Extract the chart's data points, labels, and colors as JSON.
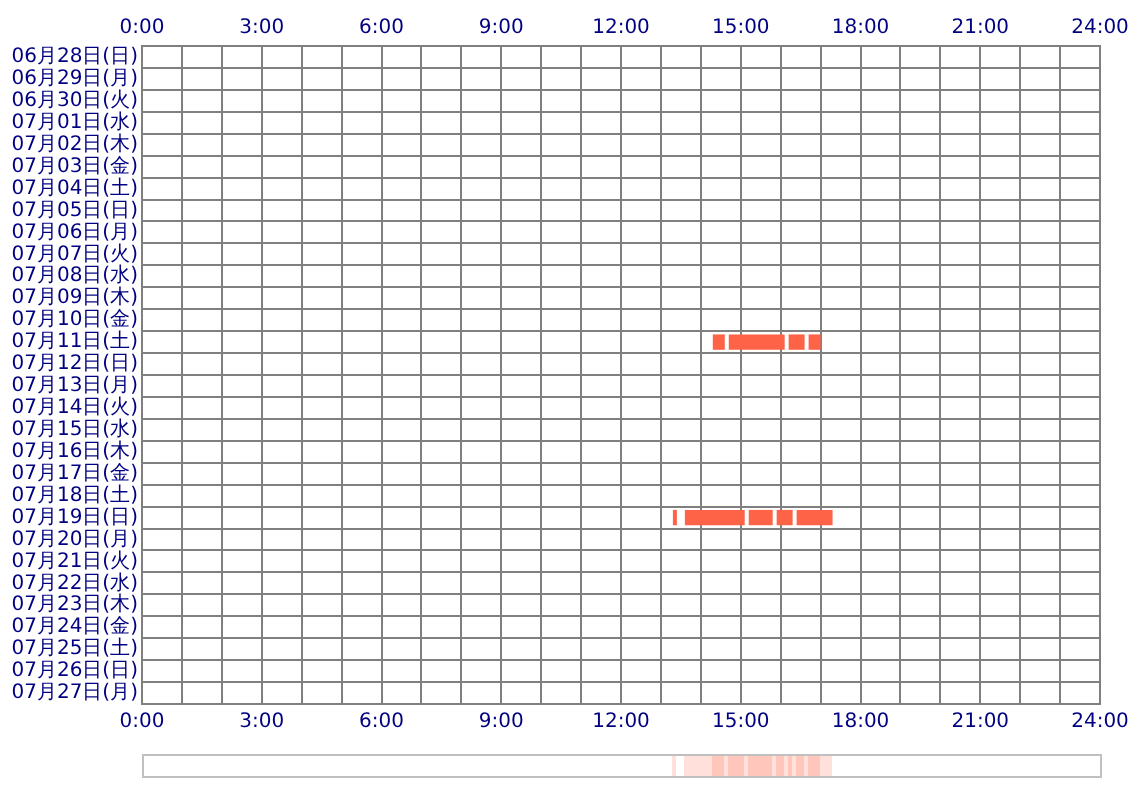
{
  "chart_data": {
    "type": "bar",
    "orientation": "horizontal",
    "legend": false,
    "grid": true,
    "categories": [
      "06月28日(日)",
      "06月29日(月)",
      "06月30日(火)",
      "07月01日(水)",
      "07月02日(木)",
      "07月03日(金)",
      "07月04日(土)",
      "07月05日(日)",
      "07月06日(月)",
      "07月07日(火)",
      "07月08日(水)",
      "07月09日(木)",
      "07月10日(金)",
      "07月11日(土)",
      "07月12日(日)",
      "07月13日(月)",
      "07月14日(火)",
      "07月15日(水)",
      "07月16日(木)",
      "07月17日(金)",
      "07月18日(土)",
      "07月19日(日)",
      "07月20日(月)",
      "07月21日(火)",
      "07月22日(水)",
      "07月23日(木)",
      "07月24日(金)",
      "07月25日(土)",
      "07月26日(日)",
      "07月27日(月)"
    ],
    "series": [
      {
        "color": "#ff6347",
        "base": [
          null,
          null,
          null,
          null,
          null,
          null,
          null,
          null,
          null,
          null,
          null,
          null,
          null,
          14.3,
          null,
          null,
          null,
          null,
          null,
          null,
          null,
          13.3,
          null,
          null,
          null,
          null,
          null,
          null,
          null,
          null
        ],
        "values": [
          null,
          null,
          null,
          null,
          null,
          null,
          null,
          null,
          null,
          null,
          null,
          null,
          null,
          0.3,
          null,
          null,
          null,
          null,
          null,
          null,
          null,
          0.1,
          null,
          null,
          null,
          null,
          null,
          null,
          null,
          null
        ]
      },
      {
        "color": "#ff6347",
        "base": [
          null,
          null,
          null,
          null,
          null,
          null,
          null,
          null,
          null,
          null,
          null,
          null,
          null,
          14.7,
          null,
          null,
          null,
          null,
          null,
          null,
          null,
          13.6,
          null,
          null,
          null,
          null,
          null,
          null,
          null,
          null
        ],
        "values": [
          null,
          null,
          null,
          null,
          null,
          null,
          null,
          null,
          null,
          null,
          null,
          null,
          null,
          1.4,
          null,
          null,
          null,
          null,
          null,
          null,
          null,
          1.5,
          null,
          null,
          null,
          null,
          null,
          null,
          null,
          null
        ]
      },
      {
        "color": "#ff6347",
        "base": [
          null,
          null,
          null,
          null,
          null,
          null,
          null,
          null,
          null,
          null,
          null,
          null,
          null,
          16.2,
          null,
          null,
          null,
          null,
          null,
          null,
          null,
          15.2,
          null,
          null,
          null,
          null,
          null,
          null,
          null,
          null
        ],
        "values": [
          null,
          null,
          null,
          null,
          null,
          null,
          null,
          null,
          null,
          null,
          null,
          null,
          null,
          0.4,
          null,
          null,
          null,
          null,
          null,
          null,
          null,
          0.6,
          null,
          null,
          null,
          null,
          null,
          null,
          null,
          null
        ]
      },
      {
        "color": "#ff6347",
        "base": [
          null,
          null,
          null,
          null,
          null,
          null,
          null,
          null,
          null,
          null,
          null,
          null,
          null,
          16.7,
          null,
          null,
          null,
          null,
          null,
          null,
          null,
          15.9,
          null,
          null,
          null,
          null,
          null,
          null,
          null,
          null
        ],
        "values": [
          null,
          null,
          null,
          null,
          null,
          null,
          null,
          null,
          null,
          null,
          null,
          null,
          null,
          0.3,
          null,
          null,
          null,
          null,
          null,
          null,
          null,
          0.4,
          null,
          null,
          null,
          null,
          null,
          null,
          null,
          null
        ]
      },
      {
        "color": "#ff6347",
        "base": [
          null,
          null,
          null,
          null,
          null,
          null,
          null,
          null,
          null,
          null,
          null,
          null,
          null,
          null,
          null,
          null,
          null,
          null,
          null,
          null,
          null,
          16.4,
          null,
          null,
          null,
          null,
          null,
          null,
          null,
          null
        ],
        "values": [
          null,
          null,
          null,
          null,
          null,
          null,
          null,
          null,
          null,
          null,
          null,
          null,
          null,
          null,
          null,
          null,
          null,
          null,
          null,
          null,
          null,
          0.9,
          null,
          null,
          null,
          null,
          null,
          null,
          null,
          null
        ]
      }
    ],
    "xlim": [
      0,
      24
    ],
    "xticks": [
      {
        "value": 0,
        "label": "0:00"
      },
      {
        "value": 1,
        "label": null
      },
      {
        "value": 2,
        "label": null
      },
      {
        "value": 3,
        "label": "3:00"
      },
      {
        "value": 4,
        "label": null
      },
      {
        "value": 5,
        "label": null
      },
      {
        "value": 6,
        "label": "6:00"
      },
      {
        "value": 7,
        "label": null
      },
      {
        "value": 8,
        "label": null
      },
      {
        "value": 9,
        "label": "9:00"
      },
      {
        "value": 10,
        "label": null
      },
      {
        "value": 11,
        "label": null
      },
      {
        "value": 12,
        "label": "12:00"
      },
      {
        "value": 13,
        "label": null
      },
      {
        "value": 14,
        "label": null
      },
      {
        "value": 15,
        "label": "15:00"
      },
      {
        "value": 16,
        "label": null
      },
      {
        "value": 17,
        "label": null
      },
      {
        "value": 18,
        "label": "18:00"
      },
      {
        "value": 19,
        "label": null
      },
      {
        "value": 20,
        "label": null
      },
      {
        "value": 21,
        "label": "21:00"
      },
      {
        "value": 22,
        "label": null
      },
      {
        "value": 23,
        "label": null
      },
      {
        "value": 24,
        "label": "24:00"
      }
    ],
    "x2lim": [
      0,
      24
    ],
    "x2ticks": [
      {
        "value": 0,
        "label": "0:00"
      },
      {
        "value": 1,
        "label": null
      },
      {
        "value": 2,
        "label": null
      },
      {
        "value": 3,
        "label": "3:00"
      },
      {
        "value": 4,
        "label": null
      },
      {
        "value": 5,
        "label": null
      },
      {
        "value": 6,
        "label": "6:00"
      },
      {
        "value": 7,
        "label": null
      },
      {
        "value": 8,
        "label": null
      },
      {
        "value": 9,
        "label": "9:00"
      },
      {
        "value": 10,
        "label": null
      },
      {
        "value": 11,
        "label": null
      },
      {
        "value": 12,
        "label": "12:00"
      },
      {
        "value": 13,
        "label": null
      },
      {
        "value": 14,
        "label": null
      },
      {
        "value": 15,
        "label": "15:00"
      },
      {
        "value": 16,
        "label": null
      },
      {
        "value": 17,
        "label": null
      },
      {
        "value": 18,
        "label": "18:00"
      },
      {
        "value": 19,
        "label": null
      },
      {
        "value": 20,
        "label": null
      },
      {
        "value": 21,
        "label": "21:00"
      },
      {
        "value": 22,
        "label": null
      },
      {
        "value": 23,
        "label": null
      },
      {
        "value": 24,
        "label": "24:00"
      }
    ]
  }
}
